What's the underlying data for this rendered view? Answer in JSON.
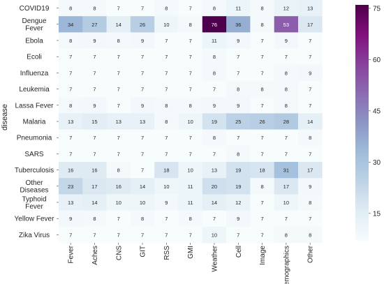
{
  "chart_data": {
    "type": "heatmap",
    "ylabel": "disease",
    "xlabel": "",
    "rows": [
      "COVID19",
      "Dengue Fever",
      "Ebola",
      "Ecoli",
      "Influenza",
      "Leukemia",
      "Lassa Fever",
      "Malaria",
      "Pneumonia",
      "SARS",
      "Tuberculosis",
      "Other Diseases",
      "Typhoid Fever",
      "Yellow Fever",
      "Zika Virus"
    ],
    "columns": [
      "Fever",
      "Aches",
      "CNS",
      "GIT",
      "RSS",
      "GMI",
      "Weather",
      "Cell",
      "Image",
      "Demographics",
      "Other"
    ],
    "values": [
      [
        8,
        8,
        7,
        7,
        8,
        7,
        8,
        11,
        8,
        12,
        13
      ],
      [
        34,
        27,
        14,
        26,
        10,
        8,
        76,
        36,
        8,
        53,
        17
      ],
      [
        8,
        9,
        8,
        9,
        7,
        7,
        11,
        9,
        7,
        9,
        7
      ],
      [
        7,
        7,
        7,
        7,
        7,
        7,
        8,
        7,
        7,
        7,
        7
      ],
      [
        7,
        7,
        7,
        7,
        7,
        7,
        8,
        7,
        7,
        8,
        9
      ],
      [
        7,
        7,
        7,
        7,
        7,
        7,
        7,
        8,
        8,
        8,
        7
      ],
      [
        8,
        9,
        7,
        9,
        8,
        8,
        9,
        9,
        7,
        8,
        7
      ],
      [
        13,
        15,
        13,
        13,
        8,
        10,
        19,
        25,
        26,
        28,
        14
      ],
      [
        7,
        7,
        7,
        7,
        7,
        7,
        8,
        7,
        7,
        7,
        8
      ],
      [
        7,
        7,
        7,
        7,
        7,
        7,
        7,
        8,
        7,
        7,
        7
      ],
      [
        16,
        16,
        8,
        7,
        18,
        10,
        13,
        19,
        18,
        31,
        17
      ],
      [
        23,
        17,
        16,
        14,
        10,
        11,
        20,
        19,
        8,
        17,
        9
      ],
      [
        13,
        14,
        10,
        10,
        9,
        11,
        14,
        12,
        7,
        10,
        8
      ],
      [
        9,
        8,
        7,
        8,
        7,
        8,
        7,
        9,
        7,
        7,
        7
      ],
      [
        7,
        7,
        7,
        7,
        7,
        7,
        10,
        7,
        7,
        8,
        8
      ]
    ],
    "colorbar": {
      "min": 7,
      "max": 76,
      "ticks": [
        15,
        30,
        45,
        60,
        75
      ],
      "colormap": "BuPu",
      "low_color": "#f7fcfd",
      "high_color": "#4d004b"
    },
    "row_label_lines": {
      "Dengue Fever": [
        "Dengue",
        "Fever"
      ],
      "Other Diseases": [
        "Other",
        "Diseases"
      ],
      "Typhoid Fever": [
        "Typhoid",
        "Fever"
      ]
    }
  }
}
